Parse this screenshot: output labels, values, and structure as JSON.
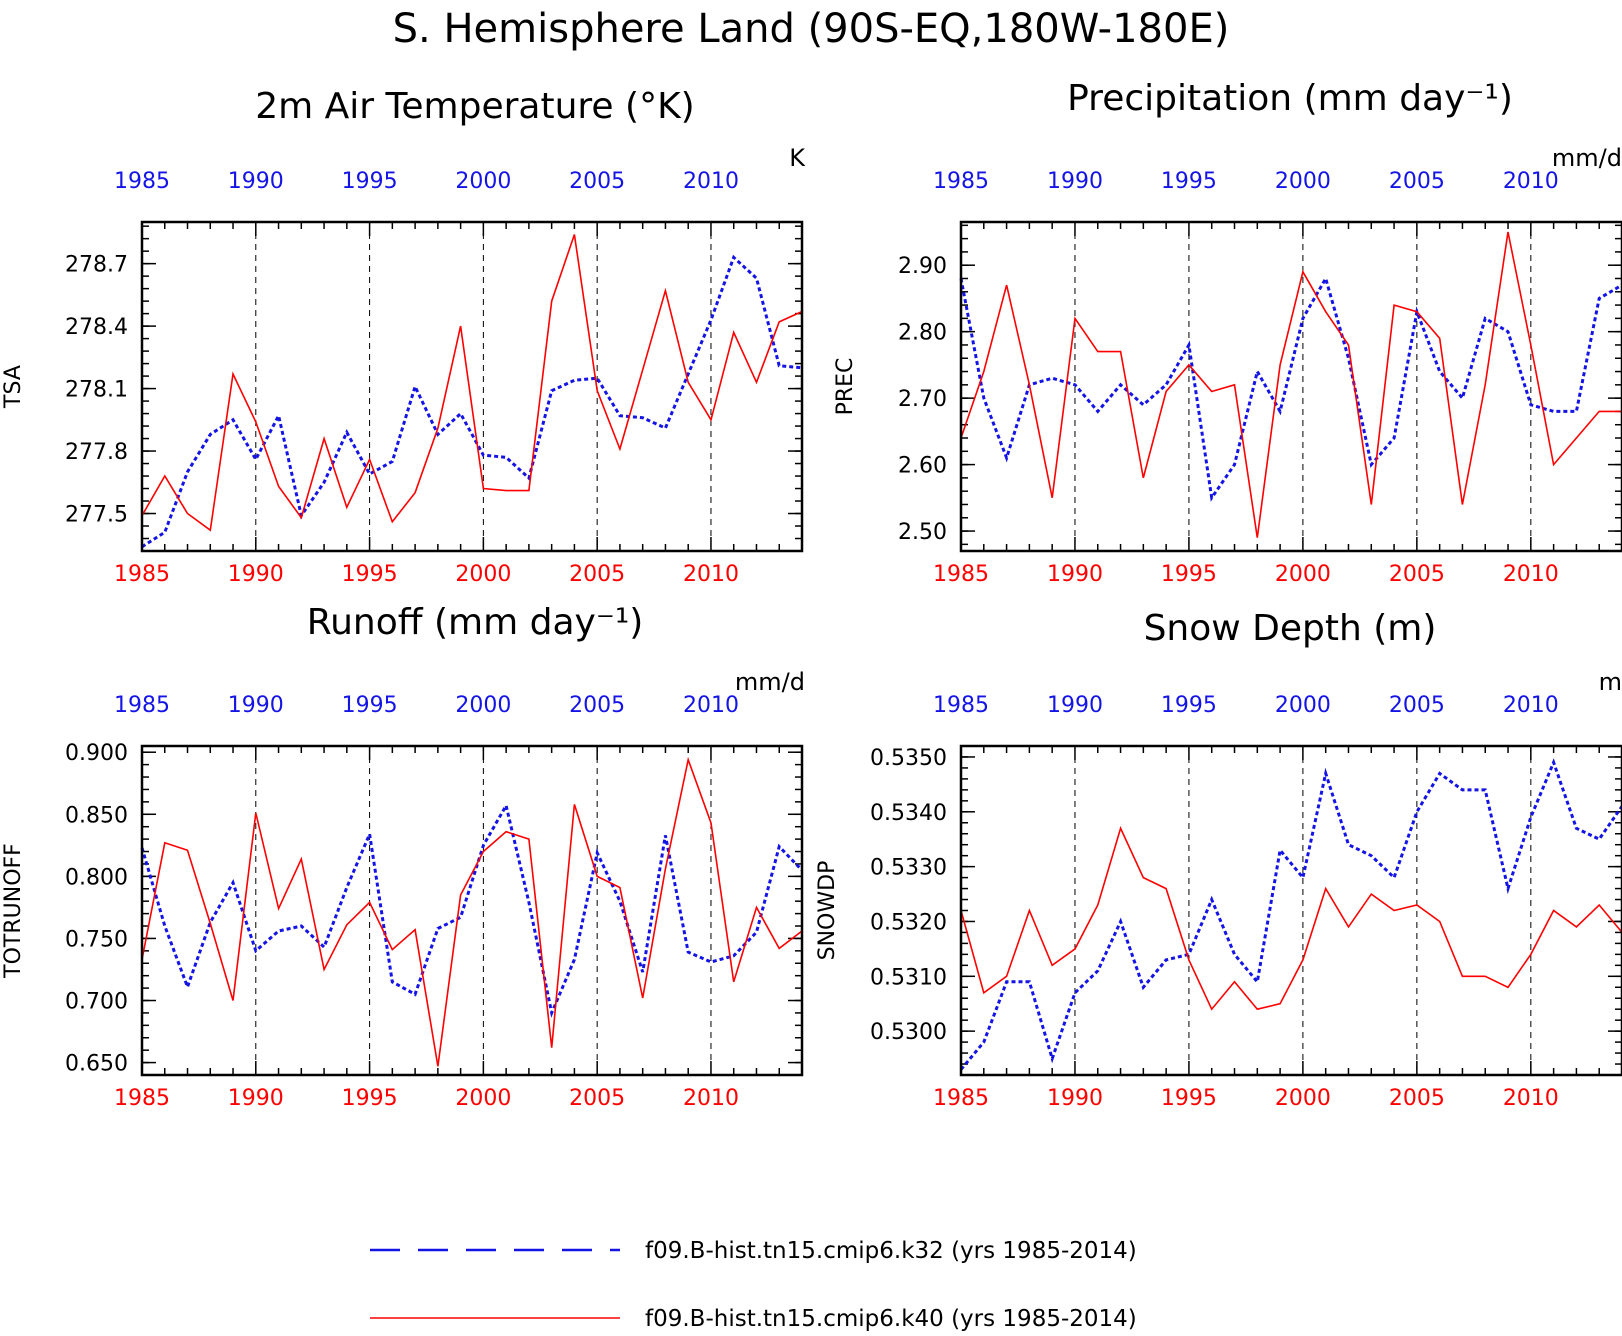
{
  "page": {
    "title": "S. Hemisphere Land (90S-EQ,180W-180E)"
  },
  "colors": {
    "k32": "#1414e6",
    "k40": "#ff0000",
    "axis": "#000000"
  },
  "legend": {
    "items": [
      {
        "label": "f09.B-hist.tn15.cmip6.k32 (yrs 1985-2014)",
        "color": "#1414e6",
        "style": "dashed"
      },
      {
        "label": "f09.B-hist.tn15.cmip6.k40 (yrs 1985-2014)",
        "color": "#ff0000",
        "style": "solid"
      }
    ]
  },
  "chart_data": [
    {
      "type": "line",
      "title": "2m Air Temperature (°K)",
      "ylabel": "TSA",
      "units": "K",
      "x": [
        1985,
        1986,
        1987,
        1988,
        1989,
        1990,
        1991,
        1992,
        1993,
        1994,
        1995,
        1996,
        1997,
        1998,
        1999,
        2000,
        2001,
        2002,
        2003,
        2004,
        2005,
        2006,
        2007,
        2008,
        2009,
        2010,
        2011,
        2012,
        2013,
        2014
      ],
      "xlim": [
        1985,
        2014
      ],
      "xticks": [
        1985,
        1990,
        1995,
        2000,
        2005,
        2010
      ],
      "ylim": [
        277.32,
        278.9
      ],
      "yticks": [
        277.5,
        277.8,
        278.1,
        278.4,
        278.7
      ],
      "ytick_labels": [
        "277.5",
        "277.8",
        "278.1",
        "278.4",
        "278.7"
      ],
      "series": [
        {
          "name": "f09.B-hist.tn15.cmip6.k32",
          "values": [
            277.34,
            277.41,
            277.7,
            277.88,
            277.95,
            277.76,
            277.97,
            277.49,
            277.65,
            277.89,
            277.69,
            277.75,
            278.11,
            277.88,
            277.98,
            277.78,
            277.77,
            277.67,
            278.09,
            278.14,
            278.15,
            277.97,
            277.96,
            277.91,
            278.17,
            278.43,
            278.73,
            278.63,
            278.21,
            278.2
          ]
        },
        {
          "name": "f09.B-hist.tn15.cmip6.k40",
          "values": [
            277.49,
            277.68,
            277.5,
            277.42,
            278.17,
            277.94,
            277.63,
            277.48,
            277.86,
            277.53,
            277.76,
            277.46,
            277.6,
            277.91,
            278.4,
            277.62,
            277.61,
            277.61,
            278.52,
            278.84,
            278.09,
            277.81,
            278.19,
            278.57,
            278.13,
            277.95,
            278.37,
            278.13,
            278.42,
            278.47
          ]
        }
      ]
    },
    {
      "type": "line",
      "title": "Precipitation (mm day⁻¹)",
      "ylabel": "PREC",
      "units": "mm/d",
      "x": [
        1985,
        1986,
        1987,
        1988,
        1989,
        1990,
        1991,
        1992,
        1993,
        1994,
        1995,
        1996,
        1997,
        1998,
        1999,
        2000,
        2001,
        2002,
        2003,
        2004,
        2005,
        2006,
        2007,
        2008,
        2009,
        2010,
        2011,
        2012,
        2013,
        2014
      ],
      "xlim": [
        1985,
        2014
      ],
      "xticks": [
        1985,
        1990,
        1995,
        2000,
        2005,
        2010
      ],
      "ylim": [
        2.47,
        2.965
      ],
      "yticks": [
        2.5,
        2.6,
        2.7,
        2.8,
        2.9
      ],
      "ytick_labels": [
        "2.50",
        "2.60",
        "2.70",
        "2.80",
        "2.90"
      ],
      "series": [
        {
          "name": "f09.B-hist.tn15.cmip6.k32",
          "values": [
            2.88,
            2.7,
            2.61,
            2.72,
            2.73,
            2.72,
            2.68,
            2.72,
            2.69,
            2.72,
            2.78,
            2.55,
            2.6,
            2.74,
            2.68,
            2.82,
            2.88,
            2.76,
            2.6,
            2.64,
            2.83,
            2.74,
            2.7,
            2.82,
            2.8,
            2.69,
            2.68,
            2.68,
            2.85,
            2.87
          ]
        },
        {
          "name": "f09.B-hist.tn15.cmip6.k40",
          "values": [
            2.64,
            2.74,
            2.87,
            2.72,
            2.55,
            2.82,
            2.77,
            2.77,
            2.58,
            2.71,
            2.75,
            2.71,
            2.72,
            2.49,
            2.75,
            2.89,
            2.83,
            2.78,
            2.54,
            2.84,
            2.83,
            2.79,
            2.54,
            2.72,
            2.95,
            2.78,
            2.6,
            2.64,
            2.68,
            2.68
          ]
        }
      ]
    },
    {
      "type": "line",
      "title": "Runoff (mm day⁻¹)",
      "ylabel": "TOTRUNOFF",
      "units": "mm/d",
      "x": [
        1985,
        1986,
        1987,
        1988,
        1989,
        1990,
        1991,
        1992,
        1993,
        1994,
        1995,
        1996,
        1997,
        1998,
        1999,
        2000,
        2001,
        2002,
        2003,
        2004,
        2005,
        2006,
        2007,
        2008,
        2009,
        2010,
        2011,
        2012,
        2013,
        2014
      ],
      "xlim": [
        1985,
        2014
      ],
      "xticks": [
        1985,
        1990,
        1995,
        2000,
        2005,
        2010
      ],
      "ylim": [
        0.64,
        0.905
      ],
      "yticks": [
        0.65,
        0.7,
        0.75,
        0.8,
        0.85,
        0.9
      ],
      "ytick_labels": [
        "0.650",
        "0.700",
        "0.750",
        "0.800",
        "0.850",
        "0.900"
      ],
      "series": [
        {
          "name": "f09.B-hist.tn15.cmip6.k32",
          "values": [
            0.823,
            0.76,
            0.711,
            0.763,
            0.795,
            0.74,
            0.756,
            0.76,
            0.743,
            0.791,
            0.834,
            0.715,
            0.705,
            0.758,
            0.767,
            0.825,
            0.857,
            0.779,
            0.69,
            0.733,
            0.819,
            0.78,
            0.723,
            0.833,
            0.739,
            0.731,
            0.736,
            0.755,
            0.824,
            0.805
          ]
        },
        {
          "name": "f09.B-hist.tn15.cmip6.k40",
          "values": [
            0.733,
            0.827,
            0.821,
            0.762,
            0.7,
            0.851,
            0.774,
            0.814,
            0.725,
            0.761,
            0.779,
            0.741,
            0.757,
            0.647,
            0.785,
            0.82,
            0.836,
            0.83,
            0.662,
            0.858,
            0.8,
            0.791,
            0.702,
            0.806,
            0.894,
            0.843,
            0.715,
            0.775,
            0.742,
            0.756
          ]
        }
      ]
    },
    {
      "type": "line",
      "title": "Snow Depth (m)",
      "ylabel": "SNOWDP",
      "units": "m",
      "x": [
        1985,
        1986,
        1987,
        1988,
        1989,
        1990,
        1991,
        1992,
        1993,
        1994,
        1995,
        1996,
        1997,
        1998,
        1999,
        2000,
        2001,
        2002,
        2003,
        2004,
        2005,
        2006,
        2007,
        2008,
        2009,
        2010,
        2011,
        2012,
        2013,
        2014
      ],
      "xlim": [
        1985,
        2014
      ],
      "xticks": [
        1985,
        1990,
        1995,
        2000,
        2005,
        2010
      ],
      "ylim": [
        0.5292,
        0.5352
      ],
      "yticks": [
        0.53,
        0.531,
        0.532,
        0.533,
        0.534,
        0.535
      ],
      "ytick_labels": [
        "0.5300",
        "0.5310",
        "0.5320",
        "0.5330",
        "0.5340",
        "0.5350"
      ],
      "series": [
        {
          "name": "f09.B-hist.tn15.cmip6.k32",
          "values": [
            0.5293,
            0.5298,
            0.5309,
            0.5309,
            0.5295,
            0.5307,
            0.5311,
            0.532,
            0.5308,
            0.5313,
            0.5314,
            0.5324,
            0.5314,
            0.5309,
            0.5333,
            0.5328,
            0.5347,
            0.5334,
            0.5332,
            0.5328,
            0.534,
            0.5347,
            0.5344,
            0.5344,
            0.5326,
            0.5339,
            0.5349,
            0.5337,
            0.5335,
            0.5341
          ]
        },
        {
          "name": "f09.B-hist.tn15.cmip6.k40",
          "values": [
            0.5322,
            0.5307,
            0.531,
            0.5322,
            0.5312,
            0.5315,
            0.5323,
            0.5337,
            0.5328,
            0.5326,
            0.5313,
            0.5304,
            0.5309,
            0.5304,
            0.5305,
            0.5313,
            0.5326,
            0.5319,
            0.5325,
            0.5322,
            0.5323,
            0.532,
            0.531,
            0.531,
            0.5308,
            0.5314,
            0.5322,
            0.5319,
            0.5323,
            0.5318
          ]
        }
      ]
    }
  ]
}
